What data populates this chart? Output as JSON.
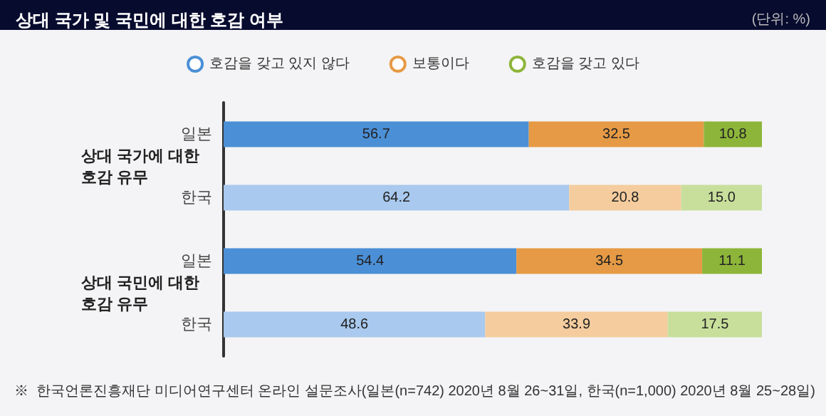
{
  "chart_data": {
    "type": "bar",
    "orientation": "horizontal",
    "stacked": true,
    "title": "상대 국가 및 국민에 대한 호감 여부",
    "subtitle": "(단위: %)",
    "categories": [
      "일본",
      "한국",
      "일본",
      "한국"
    ],
    "series": [
      {
        "name": "호감을 갖고 있지 않다",
        "color": "#4b8fd6",
        "colors": [
          "#4b8fd6",
          "#a9c9ee",
          "#4b8fd6",
          "#a9c9ee"
        ],
        "values": [
          56.7,
          64.2,
          54.4,
          48.6
        ],
        "value_labels": [
          "56.7",
          "64.2",
          "54.4",
          "48.6"
        ]
      },
      {
        "name": "보통이다",
        "color": "#e69a45",
        "colors": [
          "#e69a45",
          "#f4cc9e",
          "#e69a45",
          "#f4cc9e"
        ],
        "values": [
          32.5,
          20.8,
          34.5,
          33.9
        ],
        "value_labels": [
          "32.5",
          "20.8",
          "34.5",
          "33.9"
        ]
      },
      {
        "name": "호감을 갖고 있다",
        "color": "#8db53a",
        "colors": [
          "#8db53a",
          "#c8df9c",
          "#8db53a",
          "#c8df9c"
        ],
        "values": [
          10.8,
          15.0,
          11.1,
          17.5
        ],
        "value_labels": [
          "10.8",
          "15.0",
          "11.1",
          "17.5"
        ]
      }
    ],
    "legend": "top",
    "grid": false,
    "annotations": [
      "상대 국가에 대한\n호감 유무",
      "상대 국민에 대한\n호감 유무",
      "※  한국언론진흥재단 미디어연구센터 온라인 설문조사(일본(n=742) 2020년 8월 26~31일, 한국(n=1,000) 2020년 8월 25~28일)"
    ]
  }
}
